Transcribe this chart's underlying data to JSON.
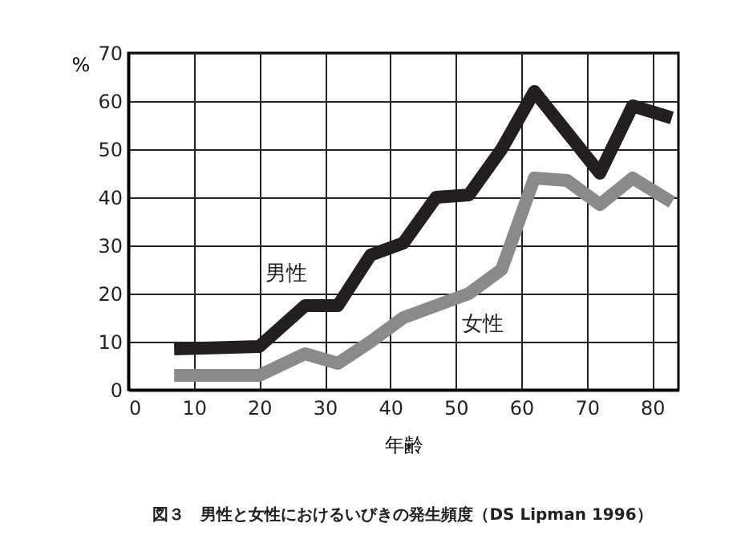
{
  "chart_data": {
    "type": "line",
    "xlabel": "年齢",
    "ylabel": "%",
    "annotations": [
      "図３　男性と女性におけるいびきの発生頻度（DS Lipman 1996）"
    ],
    "xlim": [
      0,
      84
    ],
    "xticks": [
      0,
      10,
      20,
      30,
      40,
      50,
      60,
      70,
      80
    ],
    "ylim": [
      0,
      70
    ],
    "yticks": [
      0,
      10,
      20,
      30,
      40,
      50,
      60,
      70
    ],
    "grid": true,
    "legend": false,
    "series": [
      {
        "name": "男性",
        "color": "#231f20",
        "x": [
          7,
          20,
          27,
          32,
          37,
          42,
          47,
          52,
          57,
          62,
          72,
          77,
          83
        ],
        "values": [
          8.5,
          9,
          17.5,
          17.5,
          28,
          30.5,
          40,
          40.5,
          50,
          62,
          45,
          59,
          56.5
        ]
      },
      {
        "name": "女性",
        "color": "#8a8a8a",
        "x": [
          7,
          20,
          27,
          32,
          37,
          42,
          47,
          52,
          57,
          62,
          67,
          72,
          77,
          83
        ],
        "values": [
          3,
          3,
          7.5,
          5.5,
          10,
          15,
          17.5,
          20,
          25,
          44,
          43.5,
          38.5,
          44,
          39
        ]
      }
    ]
  }
}
